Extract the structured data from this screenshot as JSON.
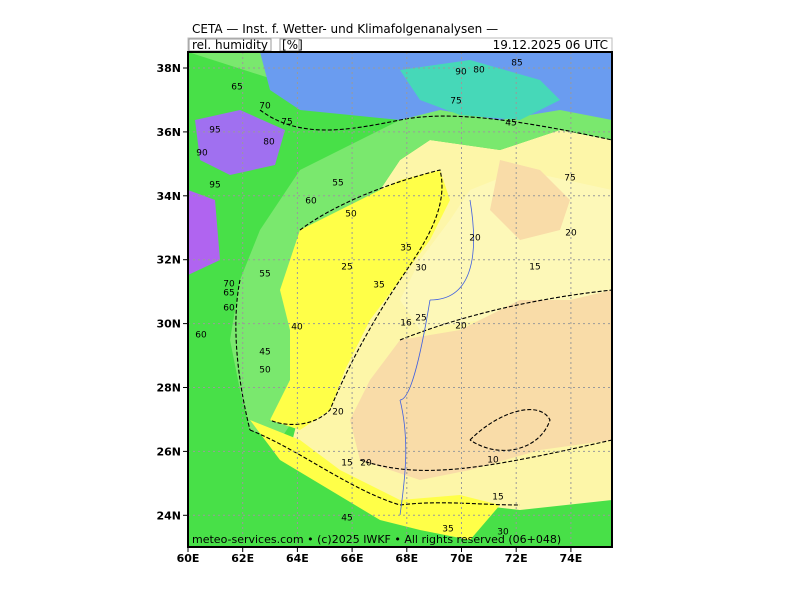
{
  "header": {
    "title": "CETA — Inst. f. Wetter- und Klimafolgenanalysen —",
    "field": "rel. humidity",
    "unit": "[%]",
    "valid_time": "19.12.2025 06 UTC"
  },
  "axes": {
    "x_ticks": [
      "60E",
      "62E",
      "64E",
      "66E",
      "68E",
      "70E",
      "72E",
      "74E"
    ],
    "y_ticks": [
      "38N",
      "36N",
      "34N",
      "32N",
      "30N",
      "28N",
      "26N",
      "24N"
    ]
  },
  "contour_labels": [
    "85",
    "90",
    "80",
    "75",
    "45",
    "65",
    "70",
    "75",
    "95",
    "90",
    "95",
    "80",
    "55",
    "50",
    "60",
    "35",
    "20",
    "30",
    "15",
    "20",
    "55",
    "25",
    "35",
    "70",
    "65",
    "60",
    "40",
    "16",
    "25",
    "20",
    "60",
    "45",
    "50",
    "20",
    "10",
    "15",
    "20",
    "15",
    "45",
    "35",
    "30",
    "75"
  ],
  "footer": {
    "credit": "meteo-services.com • (c)2025 IWKF • All rights reserved (06+048)"
  }
}
